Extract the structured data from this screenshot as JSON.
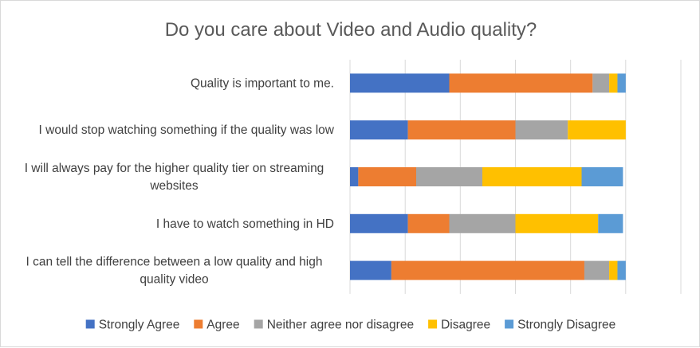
{
  "chart_data": {
    "type": "bar",
    "orientation": "horizontal",
    "stacked": "100%",
    "title": "Do you care about Video and Audio quality?",
    "categories": [
      "Quality is important to me.",
      "I would stop watching something if the quality was low",
      "I will always pay for the higher quality tier on streaming websites",
      "I have to watch something in HD",
      "I can tell the difference between a low quality and high quality video"
    ],
    "series": [
      {
        "name": "Strongly Agree",
        "color": "#4472C4",
        "values": [
          36,
          21,
          3,
          21,
          15
        ]
      },
      {
        "name": "Agree",
        "color": "#ED7D31",
        "values": [
          52,
          39,
          21,
          15,
          70
        ]
      },
      {
        "name": "Neither agree nor disagree",
        "color": "#A5A5A5",
        "values": [
          6,
          19,
          24,
          24,
          9
        ]
      },
      {
        "name": "Disagree",
        "color": "#FFC000",
        "values": [
          3,
          21,
          36,
          30,
          3
        ]
      },
      {
        "name": "Strongly Disagree",
        "color": "#5B9BD5",
        "values": [
          3,
          0,
          15,
          9,
          3
        ]
      }
    ],
    "xlim": [
      0,
      120
    ],
    "grid": true,
    "legend": "bottom"
  }
}
